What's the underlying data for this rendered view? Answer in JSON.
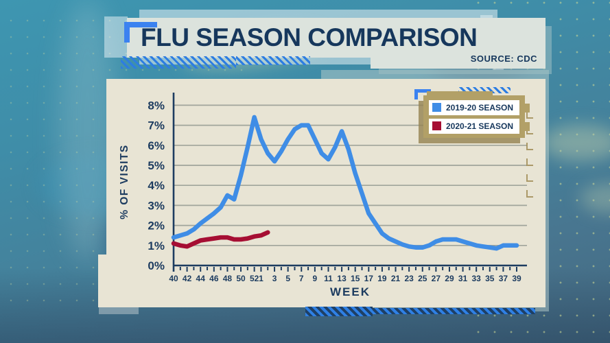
{
  "header": {
    "title": "FLU SEASON COMPARISON",
    "source": "SOURCE: CDC"
  },
  "colors": {
    "accent_blue": "#3f8de6",
    "crimson": "#a60e33",
    "navy_text": "#1d3c60",
    "panel_cream": "#e8e4d4",
    "legend_tan": "#b2a067",
    "background_teal": "#3f8ca7",
    "gridline": "#a0a59b"
  },
  "legend": {
    "items": [
      {
        "label": "2019-20 SEASON",
        "color": "#3f8de6"
      },
      {
        "label": "2020-21 SEASON",
        "color": "#a60e33"
      }
    ]
  },
  "chart_data": {
    "type": "line",
    "title": "FLU SEASON COMPARISON",
    "xlabel": "WEEK",
    "ylabel": "% OF VISITS",
    "ylim": [
      0,
      8
    ],
    "grid": "horizontal",
    "legend_position": "top-right",
    "ytick_labels": [
      "0%",
      "1%",
      "2%",
      "3%",
      "4%",
      "5%",
      "6%",
      "7%",
      "8%"
    ],
    "categories": [
      40,
      41,
      42,
      43,
      44,
      45,
      46,
      47,
      48,
      49,
      50,
      51,
      52,
      1,
      2,
      3,
      4,
      5,
      6,
      7,
      8,
      9,
      10,
      11,
      12,
      13,
      14,
      15,
      16,
      17,
      18,
      19,
      20,
      21,
      22,
      23,
      24,
      25,
      26,
      27,
      28,
      29,
      30,
      31,
      32,
      33,
      34,
      35,
      36,
      37,
      38,
      39
    ],
    "xtick_labels": [
      "40",
      "42",
      "44",
      "46",
      "48",
      "50",
      "52",
      "1",
      "3",
      "5",
      "7",
      "9",
      "11",
      "13",
      "15",
      "17",
      "19",
      "21",
      "23",
      "25",
      "27",
      "29",
      "31",
      "33",
      "35",
      "37",
      "39"
    ],
    "series": [
      {
        "name": "2019-20 SEASON",
        "color": "#3f8de6",
        "values": [
          1.4,
          1.5,
          1.6,
          1.8,
          2.1,
          2.35,
          2.6,
          2.9,
          3.5,
          3.3,
          4.5,
          5.9,
          7.4,
          6.3,
          5.6,
          5.2,
          5.7,
          6.3,
          6.8,
          7.0,
          7.0,
          6.3,
          5.6,
          5.3,
          5.9,
          6.7,
          5.8,
          4.6,
          3.6,
          2.6,
          2.1,
          1.6,
          1.35,
          1.2,
          1.05,
          0.95,
          0.9,
          0.9,
          1.0,
          1.2,
          1.3,
          1.3,
          1.3,
          1.2,
          1.1,
          1.0,
          0.95,
          0.9,
          0.85,
          1.0,
          1.0,
          1.0
        ]
      },
      {
        "name": "2020-21 SEASON",
        "color": "#a60e33",
        "values": [
          1.1,
          1.0,
          0.95,
          1.1,
          1.25,
          1.3,
          1.35,
          1.4,
          1.4,
          1.3,
          1.3,
          1.35,
          1.45,
          1.5,
          1.65
        ]
      }
    ]
  }
}
